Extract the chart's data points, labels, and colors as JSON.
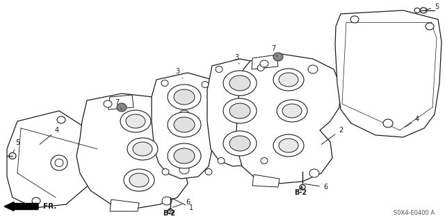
{
  "diagram_code": "S0X4-E0400 A",
  "background_color": "#ffffff",
  "line_color": "#1a1a1a",
  "figsize": [
    6.4,
    3.19
  ],
  "dpi": 100
}
